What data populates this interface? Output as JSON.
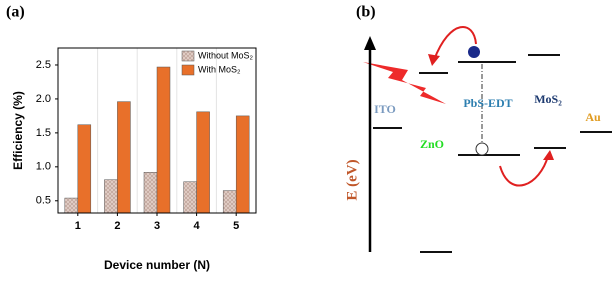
{
  "panel_labels": [
    "(a)",
    "(b)"
  ],
  "chart_data": {
    "type": "bar",
    "categories": [
      "1",
      "2",
      "3",
      "4",
      "5"
    ],
    "series": [
      {
        "name": "Without MoS₂",
        "color": "#e2cfc7",
        "values": [
          0.54,
          0.81,
          0.92,
          0.78,
          0.65
        ]
      },
      {
        "name": "With MoS₂",
        "color": "#e8702a",
        "values": [
          1.62,
          1.96,
          2.47,
          1.81,
          1.75
        ]
      }
    ],
    "xlabel": "Device number (N)",
    "ylabel": "Efficiency (%)",
    "ylim": [
      0.32,
      2.75
    ],
    "yticks": [
      "0.5",
      "1.0",
      "1.5",
      "2.0",
      "2.5"
    ],
    "legend": "top-right"
  },
  "diagram": {
    "axis_label": "E (eV)",
    "layers": {
      "ito": "ITO",
      "zno": "ZnO",
      "pbs": "PbS-EDT",
      "mos2": "MoS₂",
      "au": "Au"
    }
  }
}
